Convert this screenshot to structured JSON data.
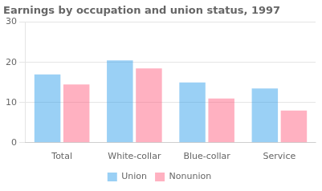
{
  "chart_data": {
    "type": "bar",
    "title": "Earnings by occupation and union status, 1997",
    "categories": [
      "Total",
      "White-collar",
      "Blue-collar",
      "Service"
    ],
    "series": [
      {
        "name": "Union",
        "values": [
          17,
          20.5,
          15,
          13.5
        ]
      },
      {
        "name": "Nonunion",
        "values": [
          14.5,
          18.5,
          11,
          8
        ]
      }
    ],
    "ylim": [
      0,
      30
    ],
    "yticks": [
      0,
      10,
      20,
      30
    ],
    "grid": true,
    "legend": "bottom"
  }
}
